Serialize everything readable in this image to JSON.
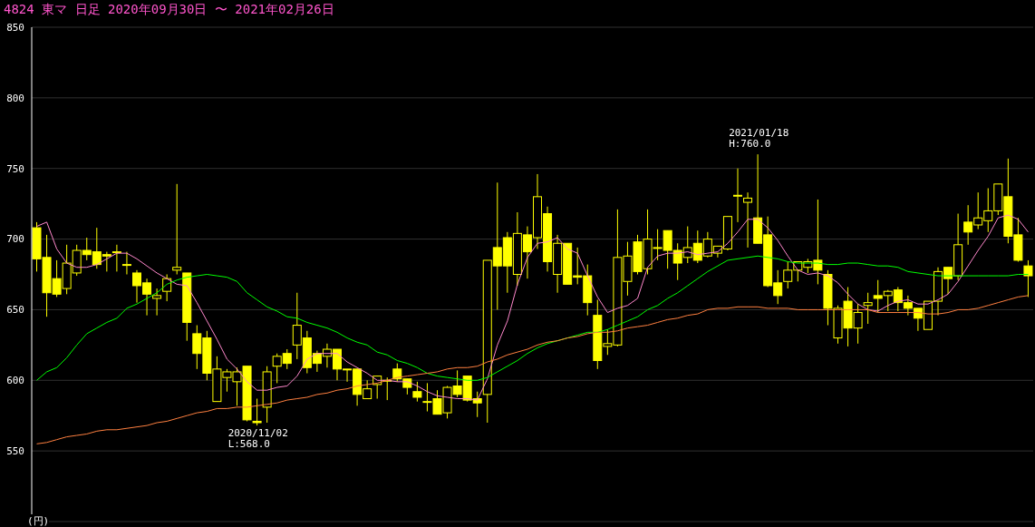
{
  "chart_data": {
    "type": "candlestick",
    "title": "4824 東マ 日足 2020年09月30日 〜 2021年02月26日",
    "ylabel": "(円)",
    "color": "#ffff00",
    "categories": [
      null,
      null,
      null,
      null,
      null,
      null,
      null,
      null,
      null,
      null,
      null,
      null,
      null,
      null,
      null,
      null,
      null,
      null,
      null,
      null,
      null,
      null,
      null,
      null,
      null,
      null,
      null,
      null,
      null,
      null,
      null,
      null,
      null,
      null,
      null,
      null,
      null,
      null,
      null,
      null,
      null,
      null,
      null,
      null,
      null,
      null,
      null,
      null,
      null,
      null,
      null,
      null,
      null,
      null,
      null,
      null,
      null,
      null,
      null,
      null,
      null,
      null,
      null,
      null,
      null,
      null,
      null,
      null,
      null,
      null,
      null,
      null,
      null,
      null,
      null,
      null,
      null,
      null,
      null,
      null,
      null,
      null,
      null,
      null,
      null,
      null,
      null,
      null,
      null,
      null,
      null,
      null,
      null,
      null,
      null,
      null,
      null,
      null,
      null,
      null
    ],
    "ohlc": [
      [
        708,
        712,
        677,
        686
      ],
      [
        687,
        703,
        645,
        662
      ],
      [
        672,
        685,
        659,
        661
      ],
      [
        665,
        696,
        661,
        683
      ],
      [
        676,
        696,
        674,
        692
      ],
      [
        692,
        701,
        685,
        689
      ],
      [
        691,
        708,
        679,
        682
      ],
      [
        689,
        691,
        677,
        688
      ],
      [
        691,
        696,
        677,
        691
      ],
      [
        682,
        691,
        675,
        682
      ],
      [
        676,
        678,
        655,
        667
      ],
      [
        669,
        672,
        646,
        661
      ],
      [
        658,
        665,
        646,
        660
      ],
      [
        663,
        675,
        656,
        672
      ],
      [
        678,
        739,
        675,
        680
      ],
      [
        676,
        676,
        628,
        641
      ],
      [
        633,
        639,
        608,
        619
      ],
      [
        630,
        635,
        600,
        605
      ],
      [
        585,
        617,
        585,
        608
      ],
      [
        602,
        608,
        592,
        606
      ],
      [
        599,
        609,
        582,
        606
      ],
      [
        610,
        610,
        571,
        572
      ],
      [
        571,
        587,
        568,
        570
      ],
      [
        581,
        610,
        570,
        606
      ],
      [
        610,
        619,
        598,
        617
      ],
      [
        619,
        622,
        608,
        612
      ],
      [
        625,
        662,
        615,
        639
      ],
      [
        630,
        635,
        605,
        609
      ],
      [
        619,
        621,
        606,
        612
      ],
      [
        617,
        626,
        609,
        622
      ],
      [
        622,
        622,
        600,
        608
      ],
      [
        608,
        608,
        599,
        608
      ],
      [
        608,
        608,
        582,
        590
      ],
      [
        587,
        600,
        587,
        594
      ],
      [
        597,
        603,
        587,
        603
      ],
      [
        600,
        602,
        586,
        600
      ],
      [
        608,
        612,
        599,
        601
      ],
      [
        601,
        601,
        590,
        595
      ],
      [
        592,
        599,
        585,
        588
      ],
      [
        585,
        598,
        578,
        585
      ],
      [
        587,
        593,
        576,
        576
      ],
      [
        577,
        596,
        573,
        595
      ],
      [
        596,
        607,
        588,
        590
      ],
      [
        603,
        603,
        585,
        586
      ],
      [
        587,
        592,
        574,
        584
      ],
      [
        590,
        685,
        570,
        685
      ],
      [
        694,
        740,
        650,
        681
      ],
      [
        701,
        705,
        662,
        681
      ],
      [
        675,
        719,
        667,
        704
      ],
      [
        703,
        709,
        672,
        691
      ],
      [
        701,
        746,
        693,
        730
      ],
      [
        718,
        723,
        677,
        684
      ],
      [
        675,
        703,
        662,
        697
      ],
      [
        697,
        697,
        668,
        668
      ],
      [
        674,
        694,
        668,
        673
      ],
      [
        674,
        682,
        646,
        655
      ],
      [
        646,
        657,
        608,
        614
      ],
      [
        624,
        636,
        618,
        626
      ],
      [
        625,
        721,
        624,
        687
      ],
      [
        670,
        698,
        660,
        688
      ],
      [
        698,
        703,
        675,
        677
      ],
      [
        679,
        721,
        675,
        700
      ],
      [
        694,
        707,
        685,
        694
      ],
      [
        706,
        706,
        679,
        692
      ],
      [
        692,
        697,
        671,
        683
      ],
      [
        687,
        709,
        683,
        694
      ],
      [
        697,
        706,
        683,
        685
      ],
      [
        688,
        705,
        687,
        700
      ],
      [
        690,
        695,
        687,
        695
      ],
      [
        693,
        716,
        692,
        716
      ],
      [
        731,
        750,
        712,
        731
      ],
      [
        726,
        733,
        694,
        729
      ],
      [
        715,
        760,
        697,
        697
      ],
      [
        703,
        716,
        666,
        667
      ],
      [
        669,
        678,
        654,
        660
      ],
      [
        670,
        684,
        665,
        678
      ],
      [
        678,
        684,
        670,
        684
      ],
      [
        680,
        686,
        676,
        684
      ],
      [
        685,
        728,
        668,
        678
      ],
      [
        675,
        678,
        639,
        651
      ],
      [
        630,
        653,
        626,
        651
      ],
      [
        656,
        666,
        624,
        637
      ],
      [
        637,
        654,
        626,
        648
      ],
      [
        653,
        662,
        640,
        655
      ],
      [
        660,
        671,
        648,
        658
      ],
      [
        660,
        664,
        649,
        663
      ],
      [
        664,
        666,
        649,
        655
      ],
      [
        655,
        660,
        646,
        651
      ],
      [
        651,
        651,
        635,
        644
      ],
      [
        636,
        656,
        636,
        656
      ],
      [
        656,
        680,
        646,
        677
      ],
      [
        680,
        680,
        661,
        672
      ],
      [
        674,
        718,
        671,
        696
      ],
      [
        712,
        724,
        696,
        705
      ],
      [
        710,
        733,
        707,
        715
      ],
      [
        713,
        736,
        705,
        720
      ],
      [
        720,
        739,
        717,
        739
      ],
      [
        730,
        757,
        697,
        702
      ],
      [
        703,
        715,
        684,
        685
      ],
      [
        681,
        685,
        659,
        674
      ]
    ],
    "series": [
      {
        "type": "line",
        "color": "#ff88cc",
        "values": [
          709,
          712,
          693,
          683,
          680,
          680,
          682,
          686,
          690,
          690,
          686,
          681,
          676,
          672,
          668,
          667,
          655,
          642,
          629,
          615,
          608,
          599,
          593,
          593,
          595,
          596,
          603,
          615,
          619,
          619,
          619,
          613,
          609,
          605,
          600,
          600,
          599,
          599,
          596,
          592,
          589,
          588,
          587,
          587,
          586,
          601,
          625,
          642,
          668,
          687,
          697,
          698,
          701,
          693,
          690,
          674,
          659,
          648,
          651,
          653,
          658,
          680,
          688,
          690,
          690,
          691,
          689,
          690,
          691,
          697,
          705,
          714,
          714,
          708,
          699,
          688,
          678,
          675,
          676,
          674,
          669,
          661,
          654,
          650,
          649,
          653,
          656,
          657,
          654,
          654,
          657,
          661,
          670,
          681,
          692,
          702,
          715,
          717,
          714,
          705
        ]
      },
      {
        "type": "line",
        "color": "#00ff00",
        "values": [
          600,
          606,
          609,
          616,
          625,
          633,
          637,
          641,
          644,
          651,
          654,
          658,
          662,
          668,
          671,
          673,
          674,
          675,
          674,
          673,
          670,
          662,
          657,
          652,
          649,
          645,
          644,
          641,
          639,
          637,
          634,
          630,
          627,
          625,
          620,
          618,
          614,
          612,
          609,
          605,
          603,
          602,
          601,
          600,
          600,
          602,
          606,
          610,
          614,
          619,
          623,
          626,
          628,
          630,
          632,
          634,
          634,
          636,
          639,
          642,
          645,
          650,
          653,
          658,
          662,
          667,
          672,
          677,
          681,
          685,
          686,
          687,
          688,
          687,
          686,
          684,
          683,
          683,
          683,
          682,
          682,
          683,
          683,
          682,
          681,
          681,
          680,
          677,
          676,
          675,
          674,
          674,
          674,
          674,
          674,
          674,
          674,
          674,
          675,
          675
        ]
      },
      {
        "type": "line",
        "color": "#ff8040",
        "values": [
          555,
          556,
          558,
          560,
          561,
          562,
          564,
          565,
          565,
          566,
          567,
          568,
          570,
          571,
          573,
          575,
          577,
          578,
          580,
          580,
          581,
          581,
          582,
          583,
          584,
          586,
          587,
          588,
          590,
          591,
          593,
          594,
          596,
          597,
          598,
          600,
          602,
          603,
          604,
          605,
          606,
          608,
          609,
          609,
          610,
          613,
          615,
          618,
          620,
          622,
          625,
          627,
          628,
          630,
          631,
          633,
          634,
          634,
          635,
          637,
          638,
          639,
          641,
          643,
          644,
          646,
          647,
          650,
          651,
          651,
          652,
          652,
          652,
          651,
          651,
          651,
          650,
          650,
          650,
          650,
          650,
          650,
          650,
          650,
          648,
          648,
          648,
          648,
          648,
          647,
          647,
          648,
          650,
          650,
          651,
          653,
          655,
          657,
          659,
          660
        ]
      }
    ],
    "ylim": [
      500,
      850
    ],
    "yticks": [
      550,
      600,
      650,
      700,
      750,
      800,
      850
    ],
    "grid": "y",
    "tick_labels": "y",
    "annotations": [
      {
        "text": "2020/11/02\nL:568.0",
        "y": 568
      },
      {
        "text": "2021/01/18\nH:760.0",
        "y": 760
      }
    ]
  }
}
